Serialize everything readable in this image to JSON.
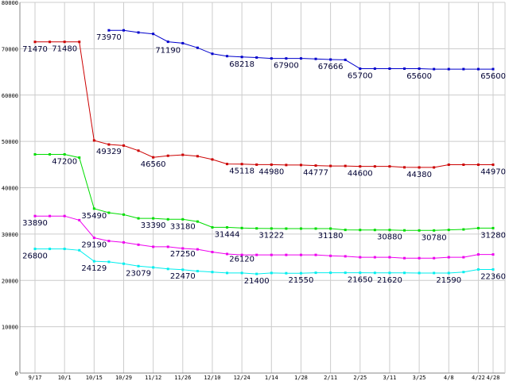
{
  "chart_data": {
    "type": "line",
    "title": "",
    "xlabel": "",
    "ylabel": "",
    "ylim": [
      0,
      80000
    ],
    "grid": true,
    "y_ticks": [
      0,
      10000,
      20000,
      30000,
      40000,
      50000,
      60000,
      70000,
      80000
    ],
    "x_tick_labels": [
      "9/17",
      "10/1",
      "10/15",
      "10/29",
      "11/12",
      "11/26",
      "12/10",
      "12/24",
      "1/14",
      "1/28",
      "2/11",
      "2/25",
      "3/11",
      "3/25",
      "4/8",
      "4/22",
      "4/28"
    ],
    "x_tick_positions": [
      0,
      2,
      4,
      6,
      8,
      10,
      12,
      14,
      16,
      18,
      20,
      22,
      24,
      26,
      28,
      30,
      31
    ],
    "x_max": 31,
    "series": [
      {
        "color": "#0000cc",
        "x": [
          5,
          6,
          7,
          8,
          9,
          10,
          11,
          12,
          13,
          14,
          15,
          16,
          17,
          18,
          19,
          20,
          21,
          22,
          23,
          24,
          25,
          26,
          27,
          28,
          29,
          30,
          31
        ],
        "values": [
          73970,
          73970,
          73500,
          73200,
          71500,
          71190,
          70200,
          68900,
          68400,
          68218,
          68100,
          67900,
          67900,
          67900,
          67800,
          67666,
          67600,
          65700,
          65700,
          65700,
          65700,
          65700,
          65600,
          65600,
          65600,
          65600,
          65600
        ]
      },
      {
        "color": "#cc0000",
        "x": [
          0,
          1,
          2,
          3,
          4,
          5,
          6,
          7,
          8,
          9,
          10,
          11,
          12,
          13,
          14,
          15,
          16,
          17,
          18,
          19,
          20,
          21,
          22,
          23,
          24,
          25,
          26,
          27,
          28,
          29,
          30,
          31
        ],
        "values": [
          71470,
          71470,
          71480,
          71480,
          50200,
          49329,
          49100,
          48000,
          46560,
          46900,
          47100,
          46800,
          46100,
          45118,
          45100,
          44980,
          44980,
          44900,
          44900,
          44777,
          44700,
          44700,
          44600,
          44600,
          44600,
          44400,
          44380,
          44380,
          44970,
          44970,
          44970,
          44970
        ]
      },
      {
        "color": "#00dd00",
        "x": [
          0,
          1,
          2,
          3,
          4,
          5,
          6,
          7,
          8,
          9,
          10,
          11,
          12,
          13,
          14,
          15,
          16,
          17,
          18,
          19,
          20,
          21,
          22,
          23,
          24,
          25,
          26,
          27,
          28,
          29,
          30,
          31
        ],
        "values": [
          47200,
          47200,
          47200,
          46500,
          35490,
          34600,
          34200,
          33390,
          33390,
          33180,
          33180,
          32700,
          31444,
          31444,
          31300,
          31222,
          31200,
          31180,
          31180,
          31180,
          31180,
          30900,
          30880,
          30880,
          30880,
          30800,
          30780,
          30780,
          30900,
          31000,
          31280,
          31280
        ]
      },
      {
        "color": "#ee00ee",
        "x": [
          0,
          1,
          2,
          3,
          4,
          5,
          6,
          7,
          8,
          9,
          10,
          11,
          12,
          13,
          14,
          15,
          16,
          17,
          18,
          19,
          20,
          21,
          22,
          23,
          24,
          25,
          26,
          27,
          28,
          29,
          30,
          31
        ],
        "values": [
          33890,
          33890,
          33890,
          33000,
          29190,
          28500,
          28200,
          27700,
          27250,
          27250,
          26900,
          26700,
          26120,
          25700,
          25500,
          25500,
          25500,
          25500,
          25500,
          25500,
          25300,
          25200,
          25000,
          25000,
          25000,
          24800,
          24800,
          24800,
          25000,
          25000,
          25600,
          25600
        ]
      },
      {
        "color": "#00eeee",
        "x": [
          0,
          1,
          2,
          3,
          4,
          5,
          6,
          7,
          8,
          9,
          10,
          11,
          12,
          13,
          14,
          15,
          16,
          17,
          18,
          19,
          20,
          21,
          22,
          23,
          24,
          25,
          26,
          27,
          28,
          29,
          30,
          31
        ],
        "values": [
          26800,
          26800,
          26800,
          26500,
          24129,
          24000,
          23600,
          23079,
          22800,
          22470,
          22300,
          22000,
          21800,
          21600,
          21600,
          21400,
          21600,
          21550,
          21550,
          21650,
          21650,
          21650,
          21650,
          21620,
          21620,
          21620,
          21590,
          21590,
          21590,
          21800,
          22360,
          22360
        ]
      }
    ],
    "data_labels": [
      {
        "x": 0,
        "value": 71470,
        "text": "71470"
      },
      {
        "x": 2,
        "value": 71480,
        "text": "71480"
      },
      {
        "x": 5,
        "value": 73970,
        "text": "73970"
      },
      {
        "x": 9,
        "value": 71190,
        "text": "71190"
      },
      {
        "x": 14,
        "value": 68218,
        "text": "68218"
      },
      {
        "x": 17,
        "value": 67900,
        "text": "67900"
      },
      {
        "x": 20,
        "value": 67666,
        "text": "67666"
      },
      {
        "x": 22,
        "value": 65700,
        "text": "65700"
      },
      {
        "x": 26,
        "value": 65600,
        "text": "65600"
      },
      {
        "x": 31,
        "value": 65600,
        "text": "65600"
      },
      {
        "x": 5,
        "value": 49329,
        "text": "49329"
      },
      {
        "x": 8,
        "value": 46560,
        "text": "46560"
      },
      {
        "x": 14,
        "value": 45118,
        "text": "45118"
      },
      {
        "x": 16,
        "value": 44980,
        "text": "44980"
      },
      {
        "x": 19,
        "value": 44777,
        "text": "44777"
      },
      {
        "x": 22,
        "value": 44600,
        "text": "44600"
      },
      {
        "x": 26,
        "value": 44380,
        "text": "44380"
      },
      {
        "x": 31,
        "value": 44970,
        "text": "44970"
      },
      {
        "x": 2,
        "value": 47200,
        "text": "47200"
      },
      {
        "x": 4,
        "value": 35490,
        "text": "35490"
      },
      {
        "x": 8,
        "value": 33390,
        "text": "33390"
      },
      {
        "x": 10,
        "value": 33180,
        "text": "33180"
      },
      {
        "x": 13,
        "value": 31444,
        "text": "31444"
      },
      {
        "x": 16,
        "value": 31222,
        "text": "31222"
      },
      {
        "x": 20,
        "value": 31180,
        "text": "31180"
      },
      {
        "x": 24,
        "value": 30880,
        "text": "30880"
      },
      {
        "x": 27,
        "value": 30780,
        "text": "30780"
      },
      {
        "x": 31,
        "value": 31280,
        "text": "31280"
      },
      {
        "x": 0,
        "value": 33890,
        "text": "33890"
      },
      {
        "x": 4,
        "value": 29190,
        "text": "29190"
      },
      {
        "x": 10,
        "value": 27250,
        "text": "27250"
      },
      {
        "x": 14,
        "value": 26120,
        "text": "26120"
      },
      {
        "x": 0,
        "value": 26800,
        "text": "26800"
      },
      {
        "x": 4,
        "value": 24129,
        "text": "24129"
      },
      {
        "x": 7,
        "value": 23079,
        "text": "23079"
      },
      {
        "x": 10,
        "value": 22470,
        "text": "22470"
      },
      {
        "x": 15,
        "value": 21400,
        "text": "21400"
      },
      {
        "x": 18,
        "value": 21550,
        "text": "21550"
      },
      {
        "x": 22,
        "value": 21650,
        "text": "21650"
      },
      {
        "x": 24,
        "value": 21620,
        "text": "21620"
      },
      {
        "x": 28,
        "value": 21590,
        "text": "21590"
      },
      {
        "x": 31,
        "value": 22360,
        "text": "22360"
      }
    ]
  }
}
